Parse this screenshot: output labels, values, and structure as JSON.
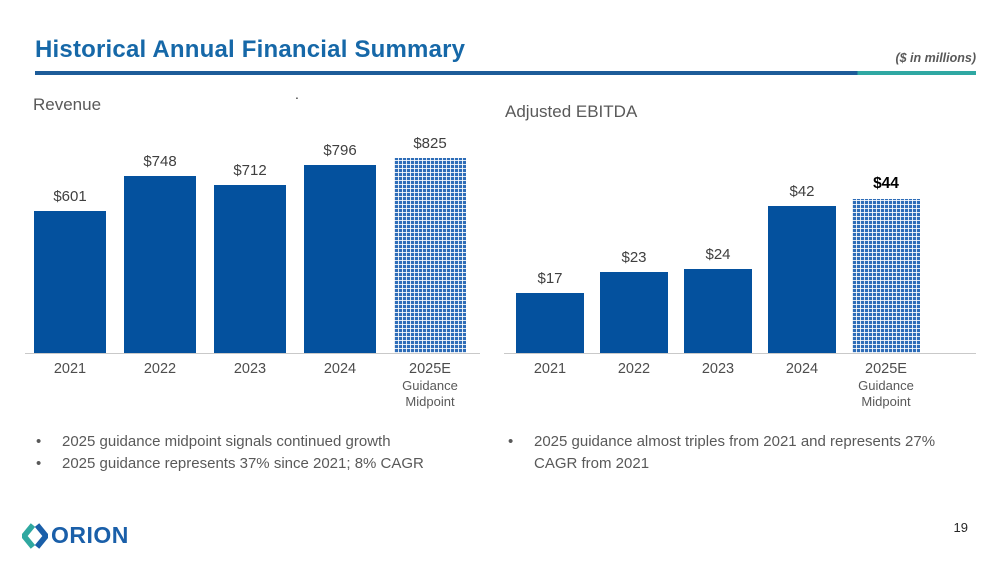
{
  "header": {
    "title": "Historical Annual Financial Summary",
    "units_note": "($ in millions)"
  },
  "colors": {
    "title_blue": "#1668A8",
    "underline_blue": "#1D5C99",
    "underline_teal": "#2FA8A3",
    "bar_blue": "#04519E",
    "pattern_bar_blue": "#2E6DB8",
    "heading_gray": "#595959",
    "value_label_gray": "#3F3F3F",
    "logo_blue": "#1A5FA9",
    "logo_teal": "#2FA8A0"
  },
  "chart_data": [
    {
      "type": "bar",
      "title": "Revenue",
      "categories": [
        "2021",
        "2022",
        "2023",
        "2024",
        "2025E\nGuidance\nMidpoint"
      ],
      "values": [
        601,
        748,
        712,
        796,
        825
      ],
      "value_labels": [
        "$601",
        "$748",
        "$712",
        "$796",
        "$825"
      ],
      "pattern_bars": [
        false,
        false,
        false,
        false,
        true
      ],
      "bold_labels": [
        false,
        false,
        false,
        false,
        false
      ],
      "units": "$ in millions",
      "ylim": [
        0,
        850
      ],
      "grid": false,
      "legend": "none",
      "note": "last bar is 2025E guidance shown with dotted pattern fill"
    },
    {
      "type": "bar",
      "title": "Adjusted EBITDA",
      "categories": [
        "2021",
        "2022",
        "2023",
        "2024",
        "2025E\nGuidance\nMidpoint"
      ],
      "values": [
        17,
        23,
        24,
        42,
        44
      ],
      "value_labels": [
        "$17",
        "$23",
        "$24",
        "$42",
        "$44"
      ],
      "pattern_bars": [
        false,
        false,
        false,
        false,
        true
      ],
      "bold_labels": [
        false,
        false,
        false,
        false,
        true
      ],
      "units": "$ in millions",
      "ylim": [
        0,
        50
      ],
      "grid": false,
      "legend": "none",
      "note": "last bar is 2025E guidance shown with dotted pattern fill; $44 label emphasized in bold"
    }
  ],
  "bullets": {
    "marker": "•",
    "left": [
      "2025 guidance midpoint signals continued growth",
      "2025 guidance represents 37% since 2021; 8% CAGR"
    ],
    "right": [
      "2025 guidance almost triples from 2021 and represents 27% CAGR from 2021"
    ]
  },
  "footer": {
    "logo_text": "ORION",
    "page_number": "19"
  },
  "misc": {
    "stray_mark": "."
  }
}
